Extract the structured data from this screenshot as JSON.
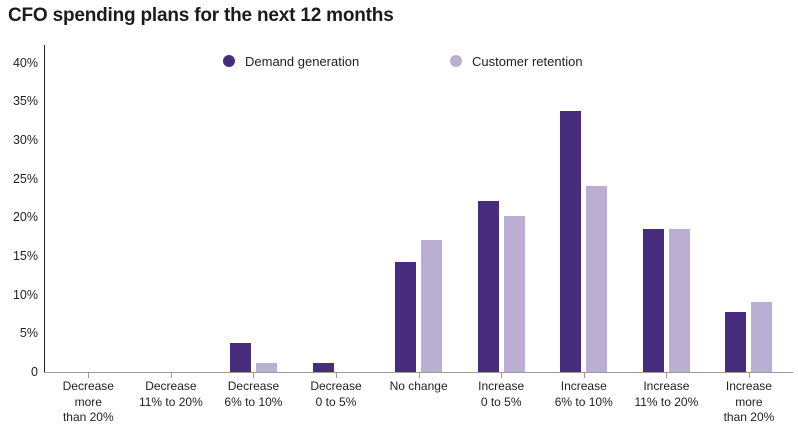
{
  "title": "CFO spending plans for the next 12 months",
  "legend": {
    "items": [
      "Demand generation",
      "Customer retention"
    ]
  },
  "chart_data": {
    "type": "bar",
    "title": "CFO spending plans for the next 12 months",
    "categories": [
      "Decrease more than 20%",
      "Decrease 11% to 20%",
      "Decrease 6% to 10%",
      "Decrease 0 to 5%",
      "No change",
      "Increase 0 to 5%",
      "Increase 6% to 10%",
      "Increase 11% to 20%",
      "Increase more than 20%"
    ],
    "category_label_lines": [
      [
        "Decrease",
        "more",
        "than 20%"
      ],
      [
        "Decrease",
        "11% to 20%"
      ],
      [
        "Decrease",
        "6% to 10%"
      ],
      [
        "Decrease",
        "0 to 5%"
      ],
      [
        "No change"
      ],
      [
        "Increase",
        "0 to 5%"
      ],
      [
        "Increase",
        "6% to 10%"
      ],
      [
        "Increase",
        "11% to 20%"
      ],
      [
        "Increase",
        "more",
        "than 20%"
      ]
    ],
    "series": [
      {
        "name": "Demand generation",
        "color": "#472b7d",
        "values": [
          0,
          0,
          3.7,
          1.2,
          14.2,
          22.1,
          33.8,
          18.5,
          7.8
        ]
      },
      {
        "name": "Customer retention",
        "color": "#bbaed3",
        "values": [
          0,
          0,
          1.2,
          0,
          17.1,
          20.2,
          24.1,
          18.5,
          9.1
        ]
      }
    ],
    "xlabel": "",
    "ylabel": "",
    "ylim": [
      0,
      40
    ],
    "ytick_step": 5,
    "ytick_labels": [
      "0",
      "5%",
      "10%",
      "15%",
      "20%",
      "25%",
      "30%",
      "35%",
      "40%"
    ],
    "grid": false,
    "legend_position": "top-center"
  },
  "colors": {
    "y_axis_line": "#222222",
    "x_axis_line": "#9b9b9b",
    "text": "#1f1f1f"
  }
}
